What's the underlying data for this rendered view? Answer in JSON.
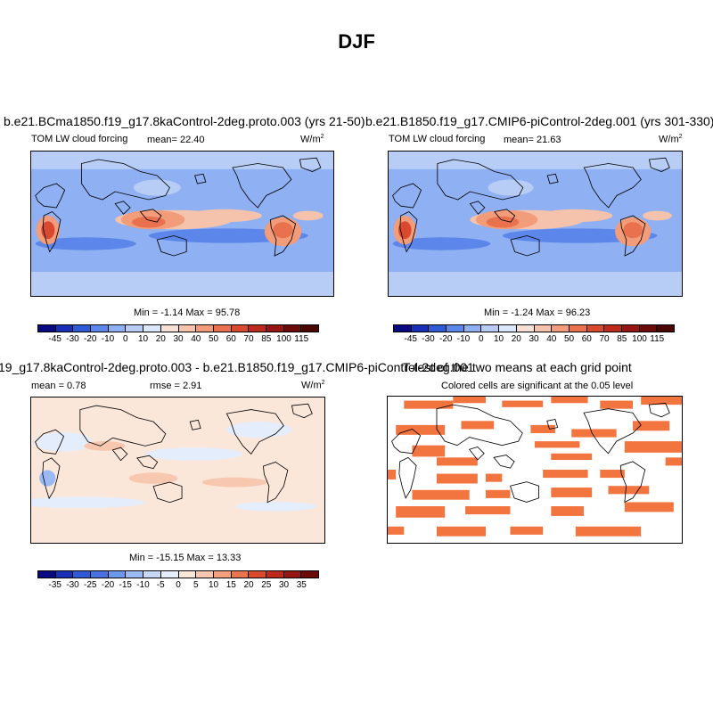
{
  "figure_title": "DJF",
  "chart_data": [
    {
      "type": "heatmap",
      "id": "panel1",
      "title": "b.e21.BCma1850.f19_g17.8kaControl-2deg.proto.003 (yrs 21-50)",
      "variable": "TOM LW cloud forcing",
      "mean_label": "mean=  22.40",
      "units": "W/m",
      "units_sup": "2",
      "minmax": "Min =  -1.14 Max =  95.78",
      "min": -1.14,
      "max": 95.78,
      "mean": 22.4,
      "colorbar_levels": [
        "-45",
        "-30",
        "-20",
        "-10",
        "0",
        "10",
        "20",
        "30",
        "40",
        "50",
        "60",
        "70",
        "85",
        "100",
        "115"
      ],
      "colorbar_colors": [
        "#0a0a80",
        "#1a2fb8",
        "#2e5ad6",
        "#5c86ea",
        "#8fb0f2",
        "#b8cdf6",
        "#dbe7fb",
        "#f7e1d6",
        "#f5c2ab",
        "#f29c7a",
        "#e9714d",
        "#d9492d",
        "#bb2a1b",
        "#951512",
        "#6c0a0a",
        "#4a0505"
      ]
    },
    {
      "type": "heatmap",
      "id": "panel2",
      "title": "b.e21.B1850.f19_g17.CMIP6-piControl-2deg.001 (yrs 301-330)",
      "variable": "TOM LW cloud forcing",
      "mean_label": "mean=  21.63",
      "units": "W/m",
      "units_sup": "2",
      "minmax": "Min =  -1.24 Max =  96.23",
      "min": -1.24,
      "max": 96.23,
      "mean": 21.63,
      "colorbar_levels": [
        "-45",
        "-30",
        "-20",
        "-10",
        "0",
        "10",
        "20",
        "30",
        "40",
        "50",
        "60",
        "70",
        "85",
        "100",
        "115"
      ],
      "colorbar_colors": [
        "#0a0a80",
        "#1a2fb8",
        "#2e5ad6",
        "#5c86ea",
        "#8fb0f2",
        "#b8cdf6",
        "#dbe7fb",
        "#f7e1d6",
        "#f5c2ab",
        "#f29c7a",
        "#e9714d",
        "#d9492d",
        "#bb2a1b",
        "#951512",
        "#6c0a0a",
        "#4a0505"
      ]
    },
    {
      "type": "heatmap",
      "id": "panel3",
      "title": "19_g17.8kaControl-2deg.proto.003 - b.e21.B1850.f19_g17.CMIP6-piControl-2deg.001",
      "mean_label": "mean =  0.78",
      "rmse_label": "rmse =  2.91",
      "units": "W/m",
      "units_sup": "2",
      "minmax": "Min = -15.15 Max =  13.33",
      "min": -15.15,
      "max": 13.33,
      "mean": 0.78,
      "rmse": 2.91,
      "colorbar_levels": [
        "-35",
        "-30",
        "-25",
        "-20",
        "-15",
        "-10",
        "-5",
        "0",
        "5",
        "10",
        "15",
        "20",
        "25",
        "30",
        "35"
      ],
      "colorbar_colors": [
        "#0a0a80",
        "#1a2fb8",
        "#2e5ad6",
        "#4a72e2",
        "#6e97ee",
        "#9bbaf4",
        "#c8d9f8",
        "#e4edfc",
        "#fbe6da",
        "#f7c7b0",
        "#f2a07e",
        "#ea7551",
        "#d94a2e",
        "#bb2a1b",
        "#951512",
        "#6c0a0a"
      ]
    },
    {
      "type": "heatmap",
      "id": "panel4",
      "title": "T-test of the two means at each grid point",
      "subtitle": "Colored cells are significant at the 0.05 level",
      "color": "#f2743e"
    }
  ]
}
